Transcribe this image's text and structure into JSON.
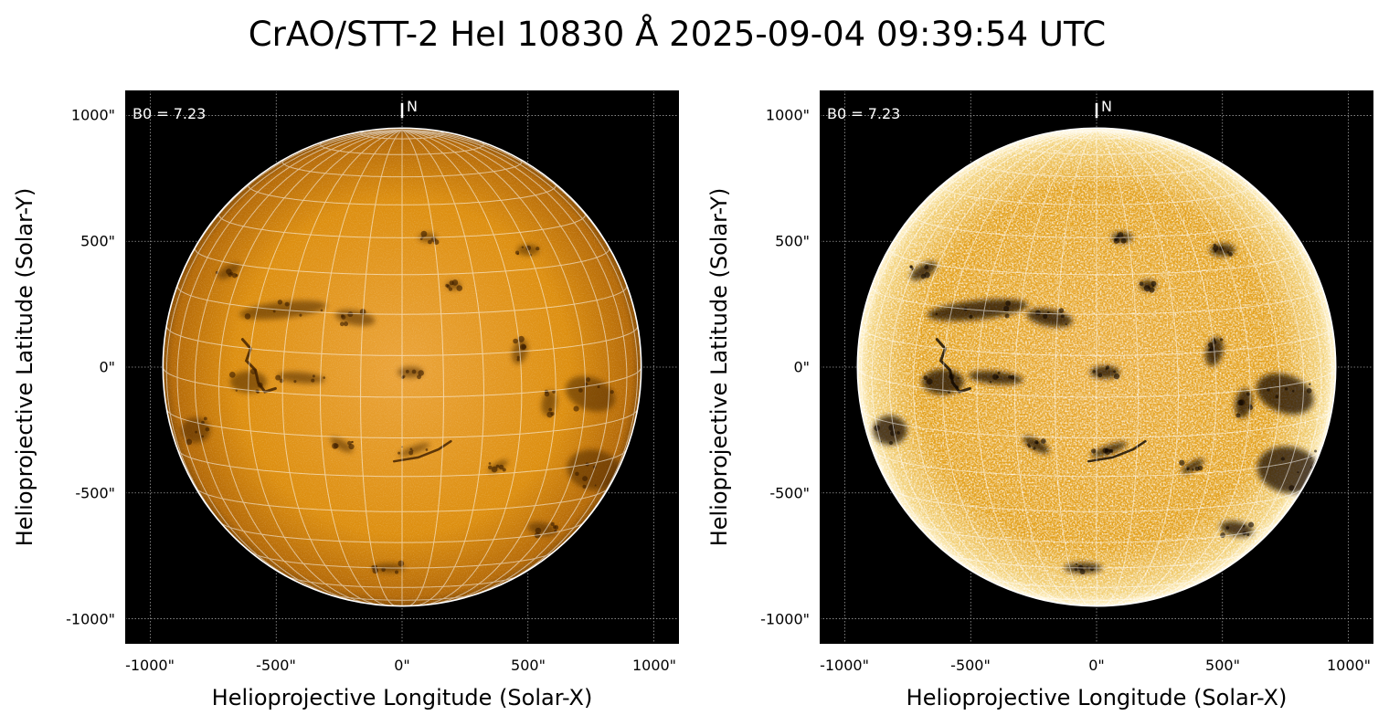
{
  "figure": {
    "title": "CrAO/STT-2 HeI 10830 Å 2025-09-04 09:39:54 UTC"
  },
  "axes_common": {
    "xlabel": "Helioprojective Longitude (Solar-X)",
    "ylabel": "Helioprojective Latitude (Solar-Y)",
    "x_ticks": [
      "-1000\"",
      "-500\"",
      "0\"",
      "500\"",
      "1000\""
    ],
    "y_ticks": [
      "1000\"",
      "500\"",
      "0\"",
      "-500\"",
      "-1000\""
    ],
    "x_tick_values": [
      -1000,
      -500,
      0,
      500,
      1000
    ],
    "y_tick_values": [
      1000,
      500,
      0,
      -500,
      -1000
    ],
    "xlim": [
      -1100,
      1100
    ],
    "ylim": [
      -1100,
      1100
    ],
    "solar_radius_arcsec": 950,
    "b0_label": "B0 = 7.23",
    "north_label": "N"
  },
  "panels": [
    {
      "id": "left",
      "disk_color": "#dd8f10",
      "limb_color": "#b56a08",
      "enhanced": false
    },
    {
      "id": "right",
      "disk_color": "#e3a01a",
      "limb_color": "#fff4cf",
      "enhanced": true
    }
  ],
  "colors": {
    "background": "#000000",
    "grid": "#ffffff",
    "limb_line": "#ffffff"
  }
}
